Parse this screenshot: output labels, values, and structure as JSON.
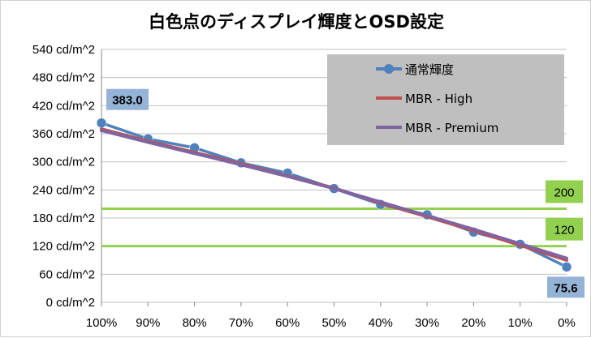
{
  "chart_data": {
    "type": "line",
    "title": "白色点のディスプレイ輝度とOSD設定",
    "x": [
      "100%",
      "90%",
      "80%",
      "70%",
      "60%",
      "50%",
      "40%",
      "30%",
      "20%",
      "10%",
      "0%"
    ],
    "ylim": [
      0,
      540
    ],
    "yticks": [
      0,
      60,
      120,
      180,
      240,
      300,
      360,
      420,
      480,
      540
    ],
    "ytick_labels": [
      "0 cd/m^2",
      "60 cd/m^2",
      "120 cd/m^2",
      "180 cd/m^2",
      "240 cd/m^2",
      "300 cd/m^2",
      "360 cd/m^2",
      "420 cd/m^2",
      "480 cd/m^2",
      "540 cd/m^2"
    ],
    "grid": "horizontal",
    "legend_position": "top-right",
    "series": [
      {
        "name": "通常輝度",
        "color": "#4f81bd",
        "marker": "circle",
        "values": [
          383.0,
          349,
          330,
          298,
          276,
          243,
          209,
          187,
          150,
          124,
          75.6
        ]
      },
      {
        "name": "MBR - High",
        "color": "#c0504d",
        "marker": "none",
        "values": [
          370,
          344,
          320,
          296,
          270,
          244,
          212,
          183,
          153,
          122,
          90
        ]
      },
      {
        "name": "MBR - Premium",
        "color": "#8064a2",
        "marker": "none",
        "values": [
          367,
          342,
          318,
          294,
          269,
          243,
          214,
          185,
          156,
          125,
          94
        ]
      }
    ],
    "reference_lines": [
      {
        "value": 200,
        "label": "200",
        "color": "#92d050"
      },
      {
        "value": 120,
        "label": "120",
        "color": "#92d050"
      }
    ],
    "annotations": [
      {
        "label": "383.0",
        "x": "100%",
        "y": 383.0
      },
      {
        "label": "75.6",
        "x": "0%",
        "y": 75.6
      }
    ]
  }
}
